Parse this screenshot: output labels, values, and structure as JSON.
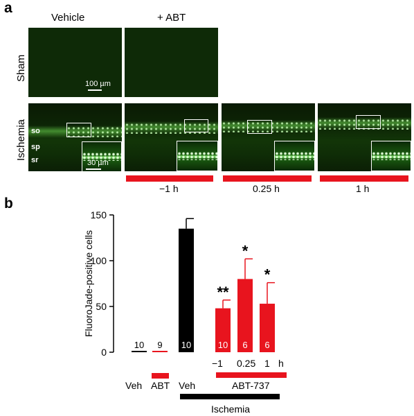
{
  "figure": {
    "panel_a": {
      "letter": "a",
      "columns": [
        "Vehicle",
        "+ ABT"
      ],
      "rows": [
        "Sham",
        "Ischemia"
      ],
      "layers": [
        "so",
        "sp",
        "sr"
      ],
      "scale_large": "100 µm",
      "scale_small": "30 µm",
      "timepoints": [
        "−1 h",
        "0.25 h",
        "1 h"
      ]
    },
    "panel_b": {
      "letter": "b",
      "group_labels": {
        "veh1": "Veh",
        "abt": "ABT",
        "veh2": "Veh",
        "abt737": "ABT-737",
        "ischemia": "Ischemia"
      },
      "time_unit": "h"
    },
    "colors": {
      "red": "#e8141e",
      "black": "#000000",
      "fluor_green": "#7fe06a"
    }
  },
  "chart_data": {
    "type": "bar",
    "ylabel": "FluoroJade-positive cells",
    "ylim": [
      0,
      150
    ],
    "yticks": [
      0,
      50,
      100,
      150
    ],
    "bars": [
      {
        "group": "Veh",
        "value": 1,
        "error": 0,
        "n": "10",
        "color": "black",
        "sig": ""
      },
      {
        "group": "ABT",
        "value": 1,
        "error": 0,
        "n": "9",
        "color": "red",
        "sig": ""
      },
      {
        "group": "Veh",
        "value": 135,
        "error": 11,
        "n": "10",
        "color": "black",
        "sig": ""
      },
      {
        "group": "−1",
        "value": 48,
        "error": 9,
        "n": "10",
        "color": "red",
        "sig": "**"
      },
      {
        "group": "0.25",
        "value": 80,
        "error": 22,
        "n": "6",
        "color": "red",
        "sig": "*"
      },
      {
        "group": "1",
        "value": 53,
        "error": 23,
        "n": "6",
        "color": "red",
        "sig": "*"
      }
    ]
  }
}
